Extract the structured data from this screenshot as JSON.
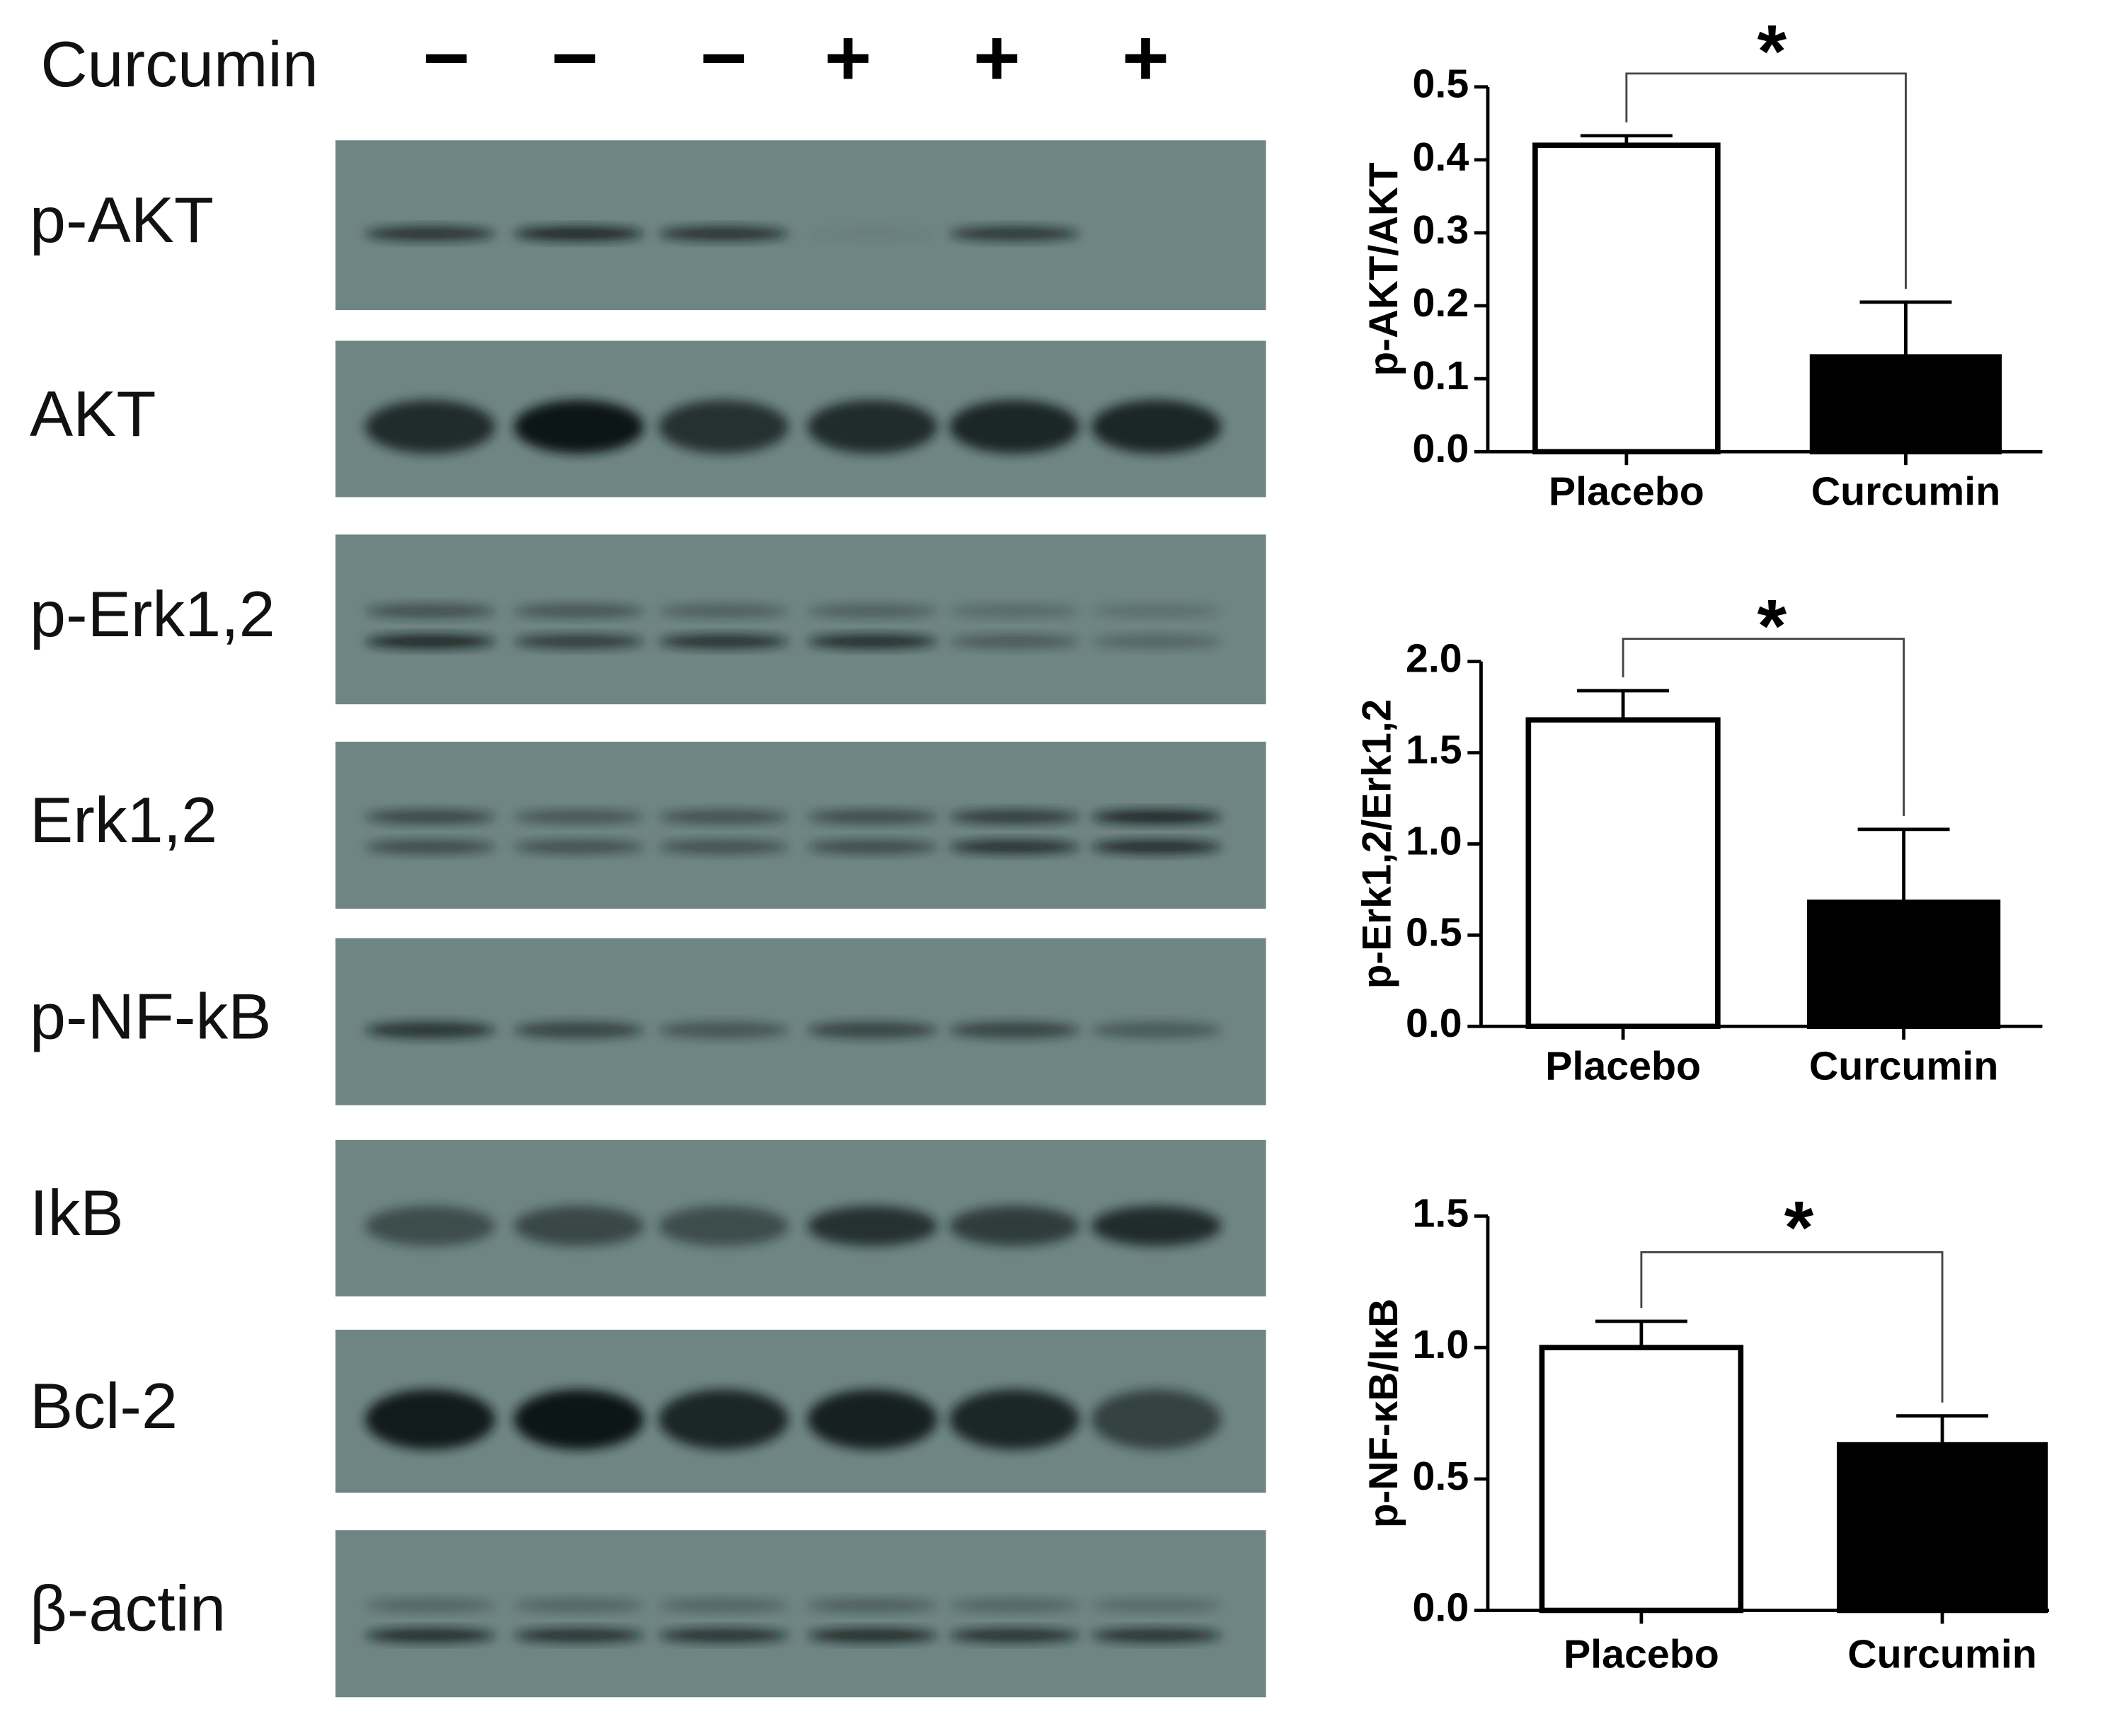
{
  "blot": {
    "treatment_label": "Curcumin",
    "lanes": [
      "−",
      "−",
      "−",
      "+",
      "+",
      "+"
    ],
    "rows": [
      "p-AKT",
      "AKT",
      "p-Erk1,2",
      "Erk1,2",
      "p-NF-kB",
      "IkB",
      "Bcl-2",
      "β-actin"
    ]
  },
  "chart_data": [
    {
      "type": "bar",
      "ylabel": "p-AKT/AKT",
      "categories": [
        "Placebo",
        "Curcumin"
      ],
      "values": [
        0.42,
        0.13
      ],
      "errors": [
        0.013,
        0.075
      ],
      "colors": [
        "#ffffff",
        "#000000"
      ],
      "ylim": [
        0,
        0.5
      ],
      "yticks": [
        {
          "value": 0,
          "label": "0.0"
        },
        0.1,
        0.2,
        0.3,
        0.4,
        0.5
      ],
      "annotation": "*"
    },
    {
      "type": "bar",
      "ylabel": "p-Erk1,2/Erk1,2",
      "categories": [
        "Placebo",
        "Curcumin"
      ],
      "values": [
        1.68,
        0.68
      ],
      "errors": [
        0.16,
        0.4
      ],
      "colors": [
        "#ffffff",
        "#000000"
      ],
      "ylim": [
        0,
        2
      ],
      "yticks": [
        {
          "value": 0,
          "label": "0.0"
        },
        0.5,
        {
          "value": 1,
          "label": "1.0"
        },
        1.5,
        {
          "value": 2,
          "label": "2.0"
        }
      ],
      "annotation": "*"
    },
    {
      "type": "bar",
      "ylabel": "p-NF-κB/IκB",
      "categories": [
        "Placebo",
        "Curcumin"
      ],
      "values": [
        1.0,
        0.63
      ],
      "errors": [
        0.1,
        0.11
      ],
      "colors": [
        "#ffffff",
        "#000000"
      ],
      "ylim": [
        0,
        1.5
      ],
      "yticks": [
        {
          "value": 0,
          "label": "0.0"
        },
        0.5,
        {
          "value": 1,
          "label": "1.0"
        },
        1.5
      ],
      "annotation": "*"
    }
  ]
}
